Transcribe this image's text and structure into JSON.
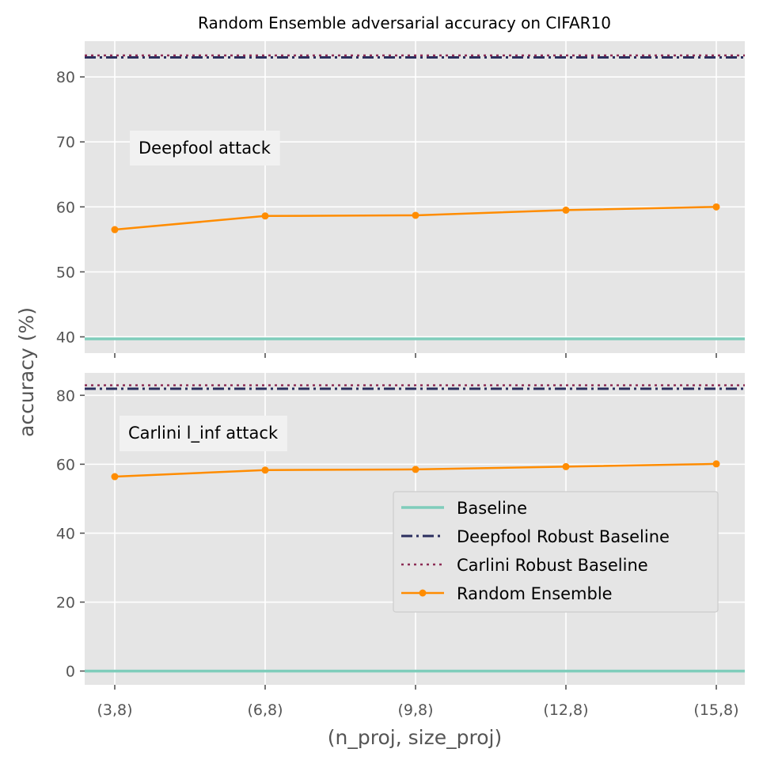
{
  "chart_data": {
    "title": "Random Ensemble adversarial accuracy on CIFAR10",
    "xlabel": "(n_proj, size_proj)",
    "ylabel": "accuracy (%)",
    "categories": [
      "(3,8)",
      "(6,8)",
      "(9,8)",
      "(12,8)",
      "(15,8)"
    ],
    "panels": [
      {
        "type": "line",
        "annotation": "Deepfool attack",
        "ylim": [
          37.5,
          85.5
        ],
        "yticks": [
          40,
          50,
          60,
          70,
          80
        ],
        "series": [
          {
            "name": "Baseline",
            "style": "solid",
            "color": "#7fcdbb",
            "values": [
              39.7,
              39.7,
              39.7,
              39.7,
              39.7
            ]
          },
          {
            "name": "Deepfool Robust Baseline",
            "style": "dashdot",
            "color": "#2b2f5e",
            "values": [
              83.0,
              83.0,
              83.0,
              83.0,
              83.0
            ]
          },
          {
            "name": "Carlini Robust Baseline",
            "style": "dotted",
            "color": "#8c2d55",
            "values": [
              83.3,
              83.3,
              83.3,
              83.3,
              83.3
            ]
          },
          {
            "name": "Random Ensemble",
            "style": "marker",
            "color": "#ff8c00",
            "values": [
              56.5,
              58.6,
              58.7,
              59.5,
              60.0
            ]
          }
        ]
      },
      {
        "type": "line",
        "annotation": "Carlini l_inf attack",
        "ylim": [
          -4,
          86.5
        ],
        "yticks": [
          0,
          20,
          40,
          60,
          80
        ],
        "series": [
          {
            "name": "Baseline",
            "style": "solid",
            "color": "#7fcdbb",
            "values": [
              0,
              0,
              0,
              0,
              0
            ]
          },
          {
            "name": "Deepfool Robust Baseline",
            "style": "dashdot",
            "color": "#2b2f5e",
            "values": [
              81.9,
              81.9,
              81.9,
              81.9,
              81.9
            ]
          },
          {
            "name": "Carlini Robust Baseline",
            "style": "dotted",
            "color": "#8c2d55",
            "values": [
              82.9,
              82.9,
              82.9,
              82.9,
              82.9
            ]
          },
          {
            "name": "Random Ensemble",
            "style": "marker",
            "color": "#ff8c00",
            "values": [
              56.4,
              58.3,
              58.5,
              59.3,
              60.1
            ]
          }
        ]
      }
    ],
    "legend": {
      "placement": "center-right of lower panel",
      "entries": [
        "Baseline",
        "Deepfool Robust Baseline",
        "Carlini Robust Baseline",
        "Random Ensemble"
      ]
    },
    "grid": true,
    "background": "#e5e5e5"
  }
}
